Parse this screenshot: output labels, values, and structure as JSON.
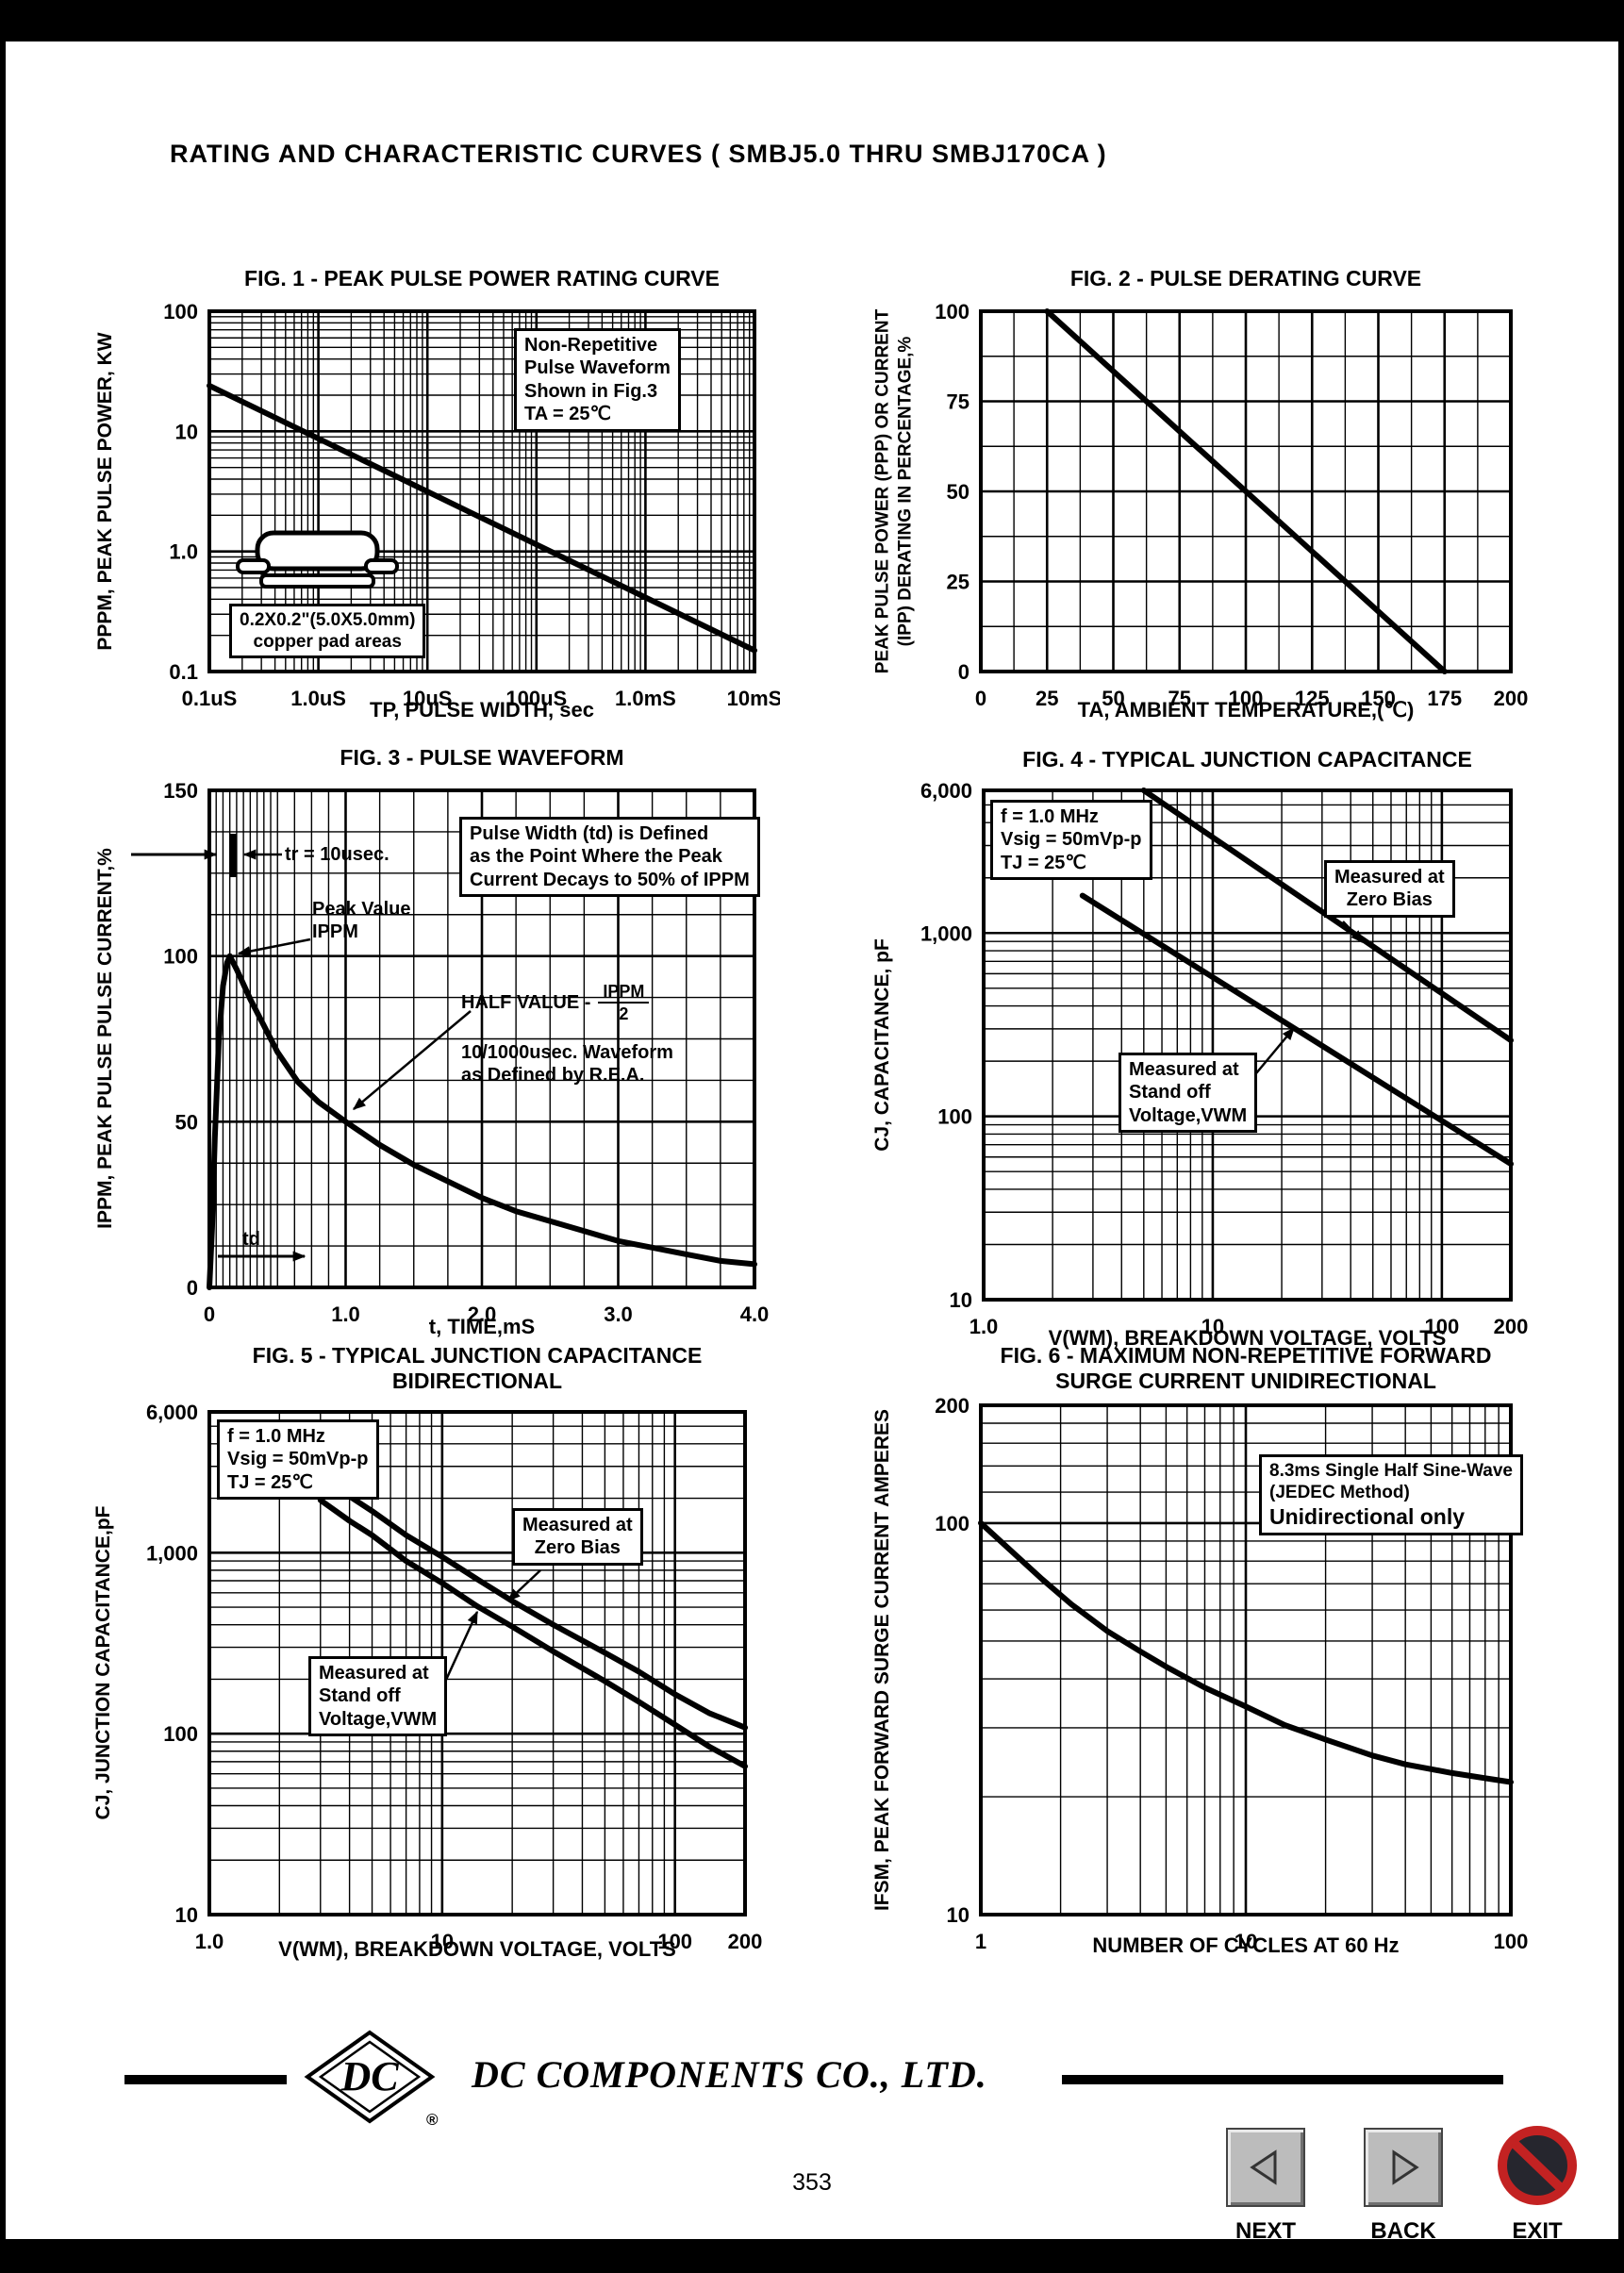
{
  "page": {
    "header_title": "RATING AND CHARACTERISTIC CURVES ( SMBJ5.0 THRU SMBJ170CA )",
    "page_number": "353"
  },
  "footer": {
    "company": "DC COMPONENTS CO., LTD.",
    "logo_text": "DC",
    "registered_mark": "®",
    "nav": [
      {
        "label": "NEXT",
        "icon": "left-triangle"
      },
      {
        "label": "BACK",
        "icon": "right-triangle"
      },
      {
        "label": "EXIT",
        "icon": "prohibition-sign"
      }
    ]
  },
  "chart_data": [
    {
      "id": "fig1",
      "type": "line",
      "title": "FIG. 1 - PEAK PULSE POWER RATING CURVE",
      "xlabel": "TP, PULSE WIDTH, sec",
      "ylabel": "PPPM, PEAK PULSE POWER, KW",
      "x": {
        "scale": "log",
        "min": 0.1,
        "max": 10000,
        "ticks": [
          {
            "v": 0.1,
            "label": "0.1uS"
          },
          {
            "v": 1,
            "label": "1.0uS"
          },
          {
            "v": 10,
            "label": "10uS"
          },
          {
            "v": 100,
            "label": "100uS"
          },
          {
            "v": 1000,
            "label": "1.0mS"
          },
          {
            "v": 10000,
            "label": "10mS"
          }
        ]
      },
      "y": {
        "scale": "log",
        "min": 0.1,
        "max": 100,
        "ticks": [
          {
            "v": 100,
            "label": "100"
          },
          {
            "v": 10,
            "label": "10"
          },
          {
            "v": 1,
            "label": "1.0"
          },
          {
            "v": 0.1,
            "label": "0.1"
          }
        ]
      },
      "series": [
        {
          "name": "peak-pulse-power",
          "points": [
            [
              0.1,
              24
            ],
            [
              10000,
              0.15
            ]
          ]
        }
      ],
      "annotations": {
        "note": [
          "Non-Repetitive",
          "Pulse Waveform",
          "Shown in Fig.3",
          "TA = 25℃"
        ],
        "pad_note": [
          "0.2X0.2\"(5.0X5.0mm)",
          "copper pad areas"
        ]
      }
    },
    {
      "id": "fig2",
      "type": "line",
      "title": "FIG. 2 - PULSE DERATING CURVE",
      "xlabel": "TA, AMBIENT TEMPERATURE,(℃)",
      "ylabel_lines": [
        "PEAK PULSE POWER (PPP) OR CURRENT",
        "(IPP) DERATING IN PERCENTAGE,%"
      ],
      "x": {
        "scale": "linear",
        "min": 0,
        "max": 200,
        "grid_step": 12.5,
        "ticks": [
          {
            "v": 0,
            "label": "0"
          },
          {
            "v": 25,
            "label": "25"
          },
          {
            "v": 50,
            "label": "50"
          },
          {
            "v": 75,
            "label": "75"
          },
          {
            "v": 100,
            "label": "100"
          },
          {
            "v": 125,
            "label": "125"
          },
          {
            "v": 150,
            "label": "150"
          },
          {
            "v": 175,
            "label": "175"
          },
          {
            "v": 200,
            "label": "200"
          }
        ]
      },
      "y": {
        "scale": "linear",
        "min": 0,
        "max": 100,
        "grid_step": 12.5,
        "ticks": [
          {
            "v": 100,
            "label": "100"
          },
          {
            "v": 75,
            "label": "75"
          },
          {
            "v": 50,
            "label": "50"
          },
          {
            "v": 25,
            "label": "25"
          },
          {
            "v": 0,
            "label": "0"
          }
        ]
      },
      "series": [
        {
          "name": "derating",
          "points": [
            [
              25,
              100
            ],
            [
              175,
              0
            ]
          ]
        }
      ]
    },
    {
      "id": "fig3",
      "type": "line",
      "title": "FIG. 3 - PULSE WAVEFORM",
      "xlabel": "t, TIME,mS",
      "ylabel": "IPPM, PEAK PULS­E PULSE CURRENT,%",
      "x": {
        "scale": "linear",
        "min": 0,
        "max": 4,
        "grid_values": [
          0.05,
          0.1,
          0.15,
          0.2,
          0.25,
          0.3,
          0.35,
          0.4,
          0.45,
          0.5,
          0.625,
          0.75,
          0.875,
          1.25,
          1.5,
          1.75,
          2.25,
          2.5,
          2.75,
          3.25,
          3.5,
          3.75
        ],
        "ticks": [
          {
            "v": 0,
            "label": "0"
          },
          {
            "v": 1,
            "label": "1.0"
          },
          {
            "v": 2,
            "label": "2.0"
          },
          {
            "v": 3,
            "label": "3.0"
          },
          {
            "v": 4,
            "label": "4.0"
          }
        ]
      },
      "y": {
        "scale": "linear",
        "min": 0,
        "max": 150,
        "grid_step": 12.5,
        "ticks": [
          {
            "v": 150,
            "label": "150"
          },
          {
            "v": 100,
            "label": "100"
          },
          {
            "v": 50,
            "label": "50"
          },
          {
            "v": 0,
            "label": "0"
          }
        ]
      },
      "series": [
        {
          "name": "pulse-waveform",
          "points": [
            [
              0,
              0
            ],
            [
              0.02,
              18
            ],
            [
              0.04,
              45
            ],
            [
              0.07,
              75
            ],
            [
              0.1,
              91
            ],
            [
              0.13,
              98
            ],
            [
              0.15,
              100
            ],
            [
              0.2,
              96
            ],
            [
              0.3,
              87
            ],
            [
              0.4,
              79
            ],
            [
              0.5,
              71
            ],
            [
              0.65,
              62
            ],
            [
              0.8,
              56
            ],
            [
              1.0,
              50
            ],
            [
              1.25,
              43
            ],
            [
              1.5,
              37
            ],
            [
              1.75,
              32
            ],
            [
              2.0,
              27
            ],
            [
              2.25,
              23
            ],
            [
              2.5,
              20
            ],
            [
              2.75,
              17
            ],
            [
              3.0,
              14
            ],
            [
              3.25,
              12
            ],
            [
              3.5,
              10
            ],
            [
              3.75,
              8
            ],
            [
              4.0,
              7
            ]
          ]
        }
      ],
      "annotations": {
        "tr_label": "tr = 10usec.",
        "peak_label": [
          "Peak Value",
          "IPPM"
        ],
        "box": [
          "Pulse Width (td) is Defined",
          "as the Point Where the Peak",
          "Current Decays to 50% of IPPM"
        ],
        "half_label": "HALF VALUE -",
        "frac_num": "IPPM",
        "frac_den": "2",
        "rea_note": [
          "10/1000usec. Waveform",
          "as Defined by R.E.A."
        ],
        "td_label": "td"
      }
    },
    {
      "id": "fig4",
      "type": "line",
      "title": "FIG. 4 - TYPICAL JUNCTION CAPACITANCE",
      "xlabel": "V(WM), BREAKDOWN VOLTAGE, VOLTS",
      "ylabel": "CJ, CAPACITANCE, pF",
      "x": {
        "scale": "log",
        "min": 1,
        "max": 200,
        "ticks": [
          {
            "v": 1,
            "label": "1.0"
          },
          {
            "v": 10,
            "label": "10"
          },
          {
            "v": 100,
            "label": "100"
          },
          {
            "v": 200,
            "label": "200"
          }
        ]
      },
      "y": {
        "scale": "log",
        "min": 10,
        "max": 6000,
        "ticks": [
          {
            "v": 6000,
            "label": "6,000"
          },
          {
            "v": 1000,
            "label": "1,000"
          },
          {
            "v": 100,
            "label": "100"
          },
          {
            "v": 10,
            "label": "10"
          }
        ]
      },
      "series": [
        {
          "name": "measured-at-zero-bias",
          "points": [
            [
              5,
              6000
            ],
            [
              200,
              260
            ]
          ]
        },
        {
          "name": "measured-at-standoff-voltage",
          "points": [
            [
              2.7,
              1600
            ],
            [
              200,
              55
            ]
          ]
        }
      ],
      "annotations": {
        "cond": [
          "f = 1.0 MHz",
          "Vsig = 50mVp-p",
          "TJ = 25℃"
        ],
        "zero_bias": [
          "Measured at",
          "Zero Bias"
        ],
        "standoff": [
          "Measured at",
          "Stand off",
          "Voltage,VWM"
        ]
      }
    },
    {
      "id": "fig5",
      "type": "line",
      "title": "FIG. 5 - TYPICAL JUNCTION CAPACITANCE",
      "subtitle": "BIDIRECTIONAL",
      "xlabel": "V(WM), BREAKDOWN VOLTAGE, VOLTS",
      "ylabel": "CJ, JUNCTION CAPACITANCE,pF",
      "x": {
        "scale": "log",
        "min": 1,
        "max": 200,
        "ticks": [
          {
            "v": 1,
            "label": "1.0"
          },
          {
            "v": 10,
            "label": "10"
          },
          {
            "v": 100,
            "label": "100"
          },
          {
            "v": 200,
            "label": "200"
          }
        ]
      },
      "y": {
        "scale": "log",
        "min": 10,
        "max": 6000,
        "ticks": [
          {
            "v": 6000,
            "label": "6,000"
          },
          {
            "v": 1000,
            "label": "1,000"
          },
          {
            "v": 100,
            "label": "100"
          },
          {
            "v": 10,
            "label": "10"
          }
        ]
      },
      "series": [
        {
          "name": "measured-at-zero-bias",
          "points": [
            [
              3,
              2600
            ],
            [
              4,
              2050
            ],
            [
              5,
              1700
            ],
            [
              7,
              1250
            ],
            [
              10,
              950
            ],
            [
              14,
              720
            ],
            [
              20,
              540
            ],
            [
              30,
              400
            ],
            [
              50,
              280
            ],
            [
              70,
              220
            ],
            [
              100,
              165
            ],
            [
              140,
              130
            ],
            [
              200,
              108
            ]
          ]
        },
        {
          "name": "measured-at-standoff-voltage",
          "points": [
            [
              3,
              1950
            ],
            [
              4,
              1500
            ],
            [
              5,
              1250
            ],
            [
              7,
              900
            ],
            [
              10,
              680
            ],
            [
              14,
              510
            ],
            [
              20,
              390
            ],
            [
              30,
              285
            ],
            [
              50,
              195
            ],
            [
              70,
              150
            ],
            [
              100,
              112
            ],
            [
              140,
              85
            ],
            [
              200,
              66
            ]
          ]
        }
      ],
      "annotations": {
        "cond": [
          "f = 1.0 MHz",
          "Vsig = 50mVp-p",
          "TJ = 25℃"
        ],
        "zero_bias": [
          "Measured at",
          "Zero Bias"
        ],
        "standoff": [
          "Measured at",
          "Stand off",
          "Voltage,VWM"
        ]
      }
    },
    {
      "id": "fig6",
      "type": "line",
      "title": "FIG. 6 - MAXIMUM NON-REPETITIVE FORWARD",
      "subtitle": "SURGE CURRENT UNIDIRECTIONAL",
      "xlabel": "NUMBER OF CYCLES AT 60 Hz",
      "ylabel": "IFSM, PEAK FORWARD SURGE CURRENT AMPERES",
      "x": {
        "scale": "log",
        "min": 1,
        "max": 100,
        "ticks": [
          {
            "v": 1,
            "label": "1"
          },
          {
            "v": 10,
            "label": "10"
          },
          {
            "v": 100,
            "label": "100"
          }
        ]
      },
      "y": {
        "scale": "log",
        "min": 10,
        "max": 200,
        "grid_values": [
          120,
          140,
          160,
          180
        ],
        "ticks": [
          {
            "v": 200,
            "label": "200"
          },
          {
            "v": 100,
            "label": "100"
          },
          {
            "v": 10,
            "label": "10"
          }
        ]
      },
      "series": [
        {
          "name": "surge-current",
          "points": [
            [
              1,
              100
            ],
            [
              1.3,
              85
            ],
            [
              1.7,
              72
            ],
            [
              2.2,
              62
            ],
            [
              3,
              53
            ],
            [
              4,
              47
            ],
            [
              5,
              43
            ],
            [
              7,
              38
            ],
            [
              10,
              34
            ],
            [
              14,
              30.5
            ],
            [
              20,
              28
            ],
            [
              30,
              25.5
            ],
            [
              40,
              24.2
            ],
            [
              60,
              23
            ],
            [
              80,
              22.3
            ],
            [
              100,
              21.8
            ]
          ]
        }
      ],
      "annotations": {
        "note": [
          "8.3ms Single Half Sine-Wave",
          "(JEDEC Method)"
        ],
        "big": "Unidirectional only"
      }
    }
  ]
}
